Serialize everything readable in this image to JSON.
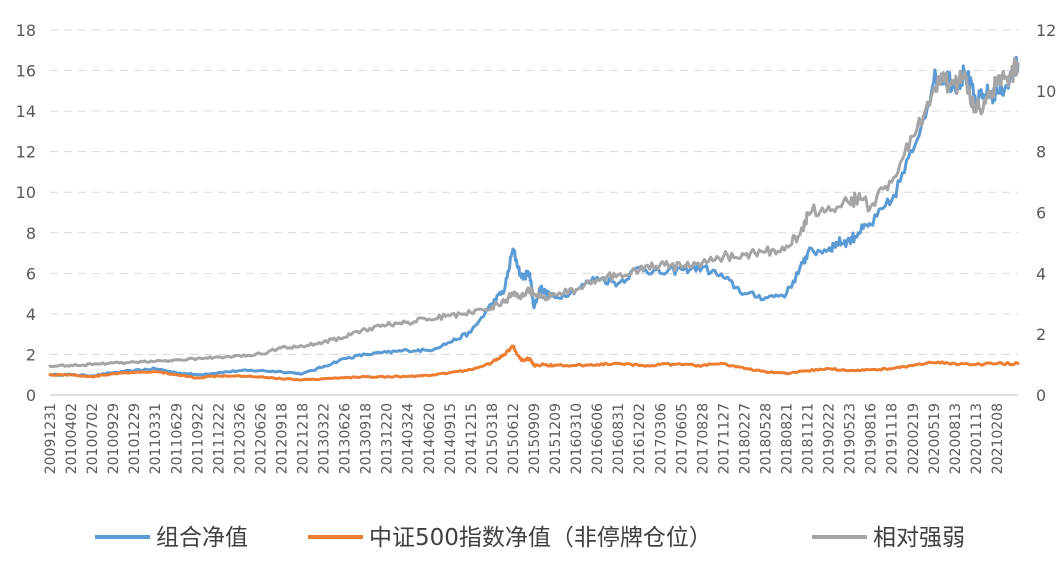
{
  "chart_data": {
    "type": "line",
    "title": "",
    "xlabel": "",
    "ylabel_left": "",
    "ylabel_right": "",
    "ylim_left": [
      0,
      18
    ],
    "ylim_right": [
      0,
      12
    ],
    "yticks_left": [
      0,
      2,
      4,
      6,
      8,
      10,
      12,
      14,
      16,
      18
    ],
    "yticks_right": [
      0,
      2,
      4,
      6,
      8,
      10,
      12
    ],
    "grid": true,
    "legend_position": "bottom",
    "x_tick_labels": [
      "20091231",
      "20100402",
      "20100702",
      "20100929",
      "20101229",
      "20110331",
      "20110629",
      "20110922",
      "20111222",
      "20120326",
      "20120626",
      "20120918",
      "20121218",
      "20130322",
      "20130626",
      "20130918",
      "20131220",
      "20140324",
      "20140620",
      "20140915",
      "20141215",
      "20150318",
      "20150612",
      "20150909",
      "20151209",
      "20160310",
      "20160606",
      "20160831",
      "20161202",
      "20170306",
      "20170605",
      "20170828",
      "20171127",
      "20180227",
      "20180528",
      "20180821",
      "20181121",
      "20190222",
      "20190523",
      "20190816",
      "20191118",
      "20200219",
      "20200519",
      "20200813",
      "20201113",
      "20210208"
    ],
    "x_range": [
      0,
      46
    ],
    "series": [
      {
        "name": "组合净值",
        "axis": "left",
        "color": "#5B9BD5",
        "x": [
          0,
          1,
          2,
          3,
          4,
          5,
          6,
          7,
          8,
          9,
          10,
          11,
          12,
          13,
          14,
          15,
          16,
          17,
          18,
          19,
          20,
          21,
          21.6,
          22,
          22.4,
          22.8,
          23,
          23.3,
          23.6,
          24,
          25,
          26,
          27,
          28,
          29,
          30,
          31,
          32,
          33,
          34,
          35,
          35.8,
          36,
          37,
          37.4,
          38,
          38.4,
          39,
          40,
          41,
          42,
          42.5,
          43,
          43.5,
          44,
          44.5,
          45,
          45.6,
          46
        ],
        "values": [
          1.0,
          1.0,
          0.95,
          1.1,
          1.2,
          1.3,
          1.1,
          1.0,
          1.1,
          1.2,
          1.2,
          1.15,
          1.05,
          1.4,
          1.8,
          2.0,
          2.1,
          2.2,
          2.2,
          2.6,
          3.1,
          4.5,
          5.2,
          7.2,
          5.8,
          6.0,
          4.3,
          5.3,
          5.0,
          4.8,
          5.2,
          5.8,
          5.5,
          6.3,
          6.0,
          6.2,
          6.3,
          5.8,
          5.0,
          4.8,
          5.0,
          6.5,
          7.0,
          7.2,
          7.5,
          7.6,
          8.0,
          8.4,
          9.6,
          12.0,
          15.5,
          15.8,
          15.3,
          15.9,
          14.4,
          14.8,
          14.9,
          15.5,
          16.3
        ]
      },
      {
        "name": "中证500指数净值（非停牌仓位）",
        "axis": "left",
        "color": "#ED7D31",
        "x": [
          0,
          1,
          2,
          3,
          4,
          5,
          6,
          7,
          8,
          9,
          10,
          11,
          12,
          13,
          14,
          15,
          16,
          17,
          18,
          19,
          20,
          21,
          21.6,
          22,
          22.4,
          22.8,
          23,
          23.5,
          24,
          25,
          26,
          27,
          28,
          29,
          30,
          31,
          32,
          33,
          34,
          35,
          36,
          37,
          38,
          39,
          40,
          41,
          42,
          43,
          44,
          45,
          46
        ],
        "values": [
          1.0,
          1.0,
          0.9,
          1.05,
          1.1,
          1.15,
          1.0,
          0.85,
          0.95,
          0.95,
          0.9,
          0.8,
          0.75,
          0.8,
          0.85,
          0.9,
          0.9,
          0.92,
          0.95,
          1.1,
          1.25,
          1.6,
          2.0,
          2.4,
          1.7,
          1.8,
          1.45,
          1.5,
          1.45,
          1.45,
          1.5,
          1.55,
          1.45,
          1.5,
          1.5,
          1.45,
          1.55,
          1.3,
          1.15,
          1.05,
          1.2,
          1.3,
          1.2,
          1.25,
          1.3,
          1.45,
          1.6,
          1.55,
          1.5,
          1.55,
          1.55
        ]
      },
      {
        "name": "相对强弱",
        "axis": "right",
        "color": "#A5A5A5",
        "x": [
          0,
          1,
          2,
          3,
          4,
          5,
          6,
          7,
          8,
          9,
          10,
          11,
          12,
          13,
          14,
          15,
          16,
          17,
          18,
          19,
          20,
          21,
          21.6,
          22,
          22.4,
          22.8,
          23,
          23.5,
          24,
          25,
          26,
          27,
          28,
          29,
          30,
          31,
          32,
          33,
          34,
          35,
          35.8,
          36,
          37,
          38,
          38.4,
          39,
          40,
          41,
          42,
          42.5,
          43,
          43.5,
          44,
          44.5,
          45,
          45.6,
          46
        ],
        "values": [
          0.95,
          0.98,
          1.0,
          1.05,
          1.08,
          1.1,
          1.15,
          1.2,
          1.25,
          1.3,
          1.35,
          1.55,
          1.6,
          1.75,
          1.9,
          2.15,
          2.3,
          2.4,
          2.5,
          2.6,
          2.7,
          2.9,
          3.05,
          3.35,
          3.25,
          3.45,
          3.3,
          3.2,
          3.3,
          3.45,
          3.8,
          3.95,
          4.1,
          4.3,
          4.2,
          4.35,
          4.55,
          4.6,
          4.7,
          4.9,
          5.4,
          6.0,
          6.2,
          6.3,
          6.5,
          6.2,
          7.0,
          8.5,
          10.1,
          10.3,
          10.2,
          10.5,
          9.3,
          9.8,
          10.2,
          10.5,
          10.9
        ]
      }
    ]
  }
}
